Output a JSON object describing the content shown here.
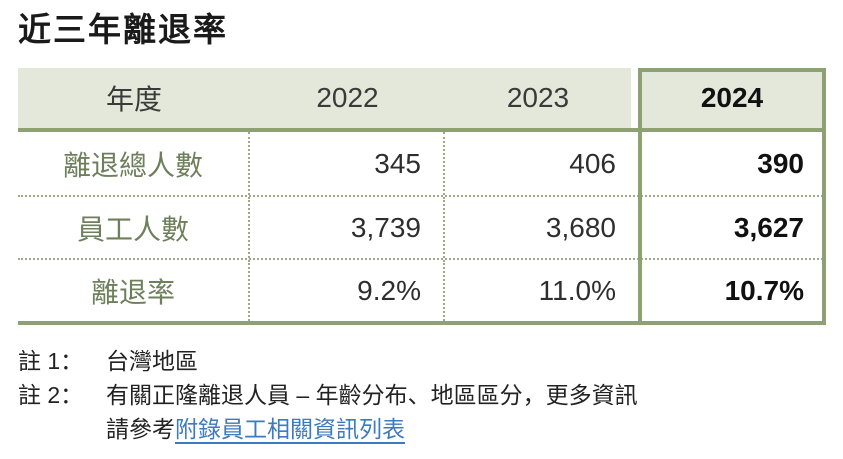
{
  "page": {
    "title": "近三年離退率"
  },
  "table": {
    "header": {
      "label": "年度",
      "years": [
        "2022",
        "2023",
        "2024"
      ]
    },
    "rows": [
      {
        "label": "離退總人數",
        "values": [
          "345",
          "406",
          "390"
        ]
      },
      {
        "label": "員工人數",
        "values": [
          "3,739",
          "3,680",
          "3,627"
        ]
      },
      {
        "label": "離退率",
        "values": [
          "9.2%",
          "11.0%",
          "10.7%"
        ]
      }
    ],
    "highlight_year": "2024"
  },
  "notes": {
    "note1": {
      "label": "註 1：",
      "text": "台灣地區"
    },
    "note2": {
      "label": "註 2：",
      "line1": "有關正隆離退人員 – 年齡分布、地區區分，更多資訊",
      "line2_prefix": "請參考",
      "link_text": "附錄員工相關資訊列表"
    }
  },
  "colors": {
    "accent_green": "#8EA172",
    "header_bg": "#E4E8DA",
    "label_green": "#6E7F5C",
    "link_blue": "#3D7ABF"
  }
}
